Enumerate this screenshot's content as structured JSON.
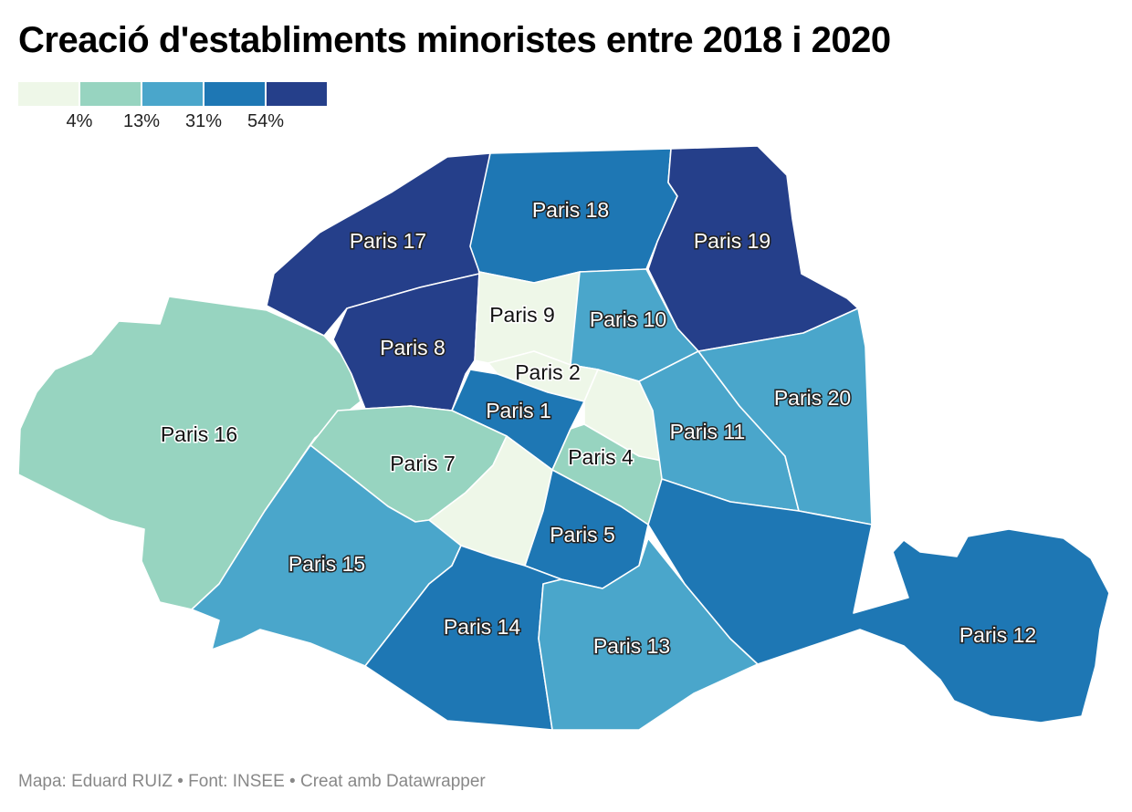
{
  "title": "Creació d'establiments minoristes entre 2018 i 2020",
  "legend": {
    "colors": [
      "#eef7e8",
      "#97d4c0",
      "#4aa6cb",
      "#1e77b4",
      "#253f8a"
    ],
    "ticks": [
      "4%",
      "13%",
      "31%",
      "54%"
    ]
  },
  "footer": {
    "credit": "Mapa: Eduard RUIZ • Font: INSEE • Creat amb Datawrapper"
  },
  "districts": [
    {
      "key": "p17",
      "label": "Paris 17",
      "bin": 4
    },
    {
      "key": "p18",
      "label": "Paris 18",
      "bin": 3
    },
    {
      "key": "p19",
      "label": "Paris 19",
      "bin": 4
    },
    {
      "key": "p16",
      "label": "Paris 16",
      "bin": 1
    },
    {
      "key": "p8",
      "label": "Paris 8",
      "bin": 4
    },
    {
      "key": "p9",
      "label": "Paris 9",
      "bin": 0
    },
    {
      "key": "p10",
      "label": "Paris 10",
      "bin": 2
    },
    {
      "key": "p2",
      "label": "Paris 2",
      "bin": 0
    },
    {
      "key": "p1",
      "label": "Paris 1",
      "bin": 3
    },
    {
      "key": "p3",
      "label": "",
      "bin": 0
    },
    {
      "key": "p4",
      "label": "Paris 4",
      "bin": 1
    },
    {
      "key": "p11",
      "label": "Paris 11",
      "bin": 2
    },
    {
      "key": "p20",
      "label": "Paris 20",
      "bin": 2
    },
    {
      "key": "p7",
      "label": "Paris 7",
      "bin": 1
    },
    {
      "key": "p6",
      "label": "",
      "bin": 0
    },
    {
      "key": "p5",
      "label": "Paris 5",
      "bin": 3
    },
    {
      "key": "p15",
      "label": "Paris 15",
      "bin": 2
    },
    {
      "key": "p14",
      "label": "Paris 14",
      "bin": 3
    },
    {
      "key": "p13",
      "label": "Paris 13",
      "bin": 2
    },
    {
      "key": "p12",
      "label": "Paris 12",
      "bin": 3
    }
  ]
}
